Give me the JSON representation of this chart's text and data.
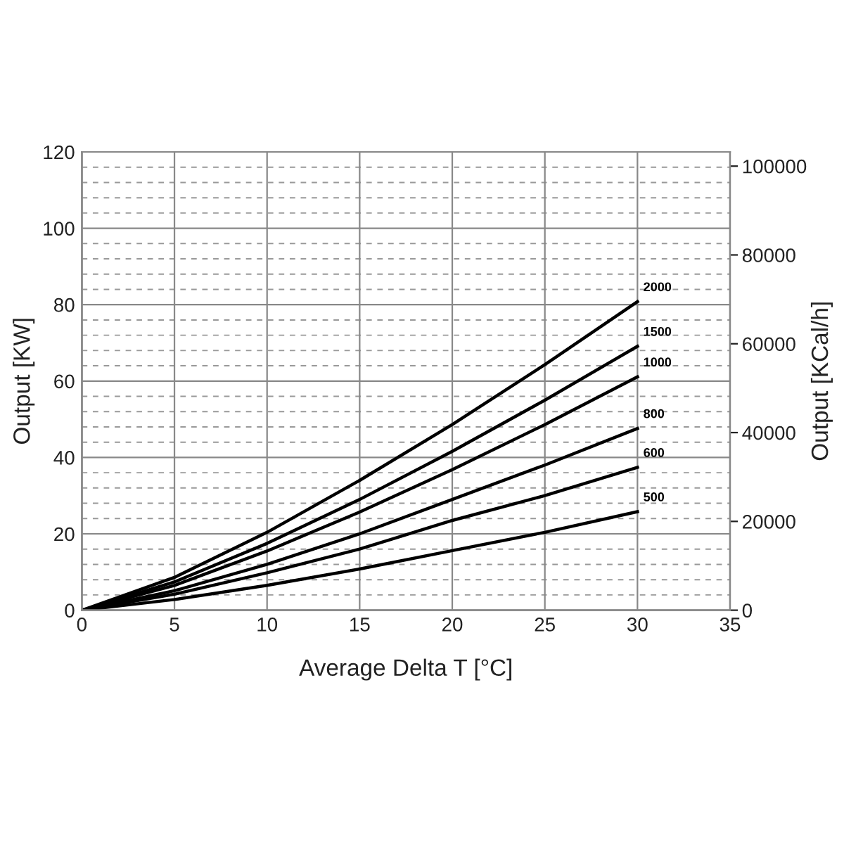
{
  "chart_data": {
    "type": "line",
    "xlabel": "Average Delta T [°C]",
    "ylabel": "Output [KW]",
    "y2label": "Output [KCal/h]",
    "x": [
      0,
      5,
      10,
      15,
      20,
      25,
      30
    ],
    "series": [
      {
        "name": "2000",
        "color": "#000000",
        "values": [
          0,
          8.6,
          20.4,
          34,
          48.6,
          64.3,
          80.8
        ]
      },
      {
        "name": "1500",
        "color": "#000000",
        "values": [
          0,
          7.4,
          17.5,
          29,
          41.6,
          55,
          69.1
        ]
      },
      {
        "name": "1000",
        "color": "#000000",
        "values": [
          0,
          6.5,
          15.5,
          25.7,
          36.8,
          48.6,
          61.1
        ]
      },
      {
        "name": "800",
        "color": "#000000",
        "values": [
          0,
          5.1,
          12,
          20,
          29,
          38,
          47.6
        ]
      },
      {
        "name": "600",
        "color": "#000000",
        "values": [
          0,
          4.2,
          9.8,
          16,
          23.5,
          30,
          37.4
        ]
      },
      {
        "name": "500",
        "color": "#000000",
        "values": [
          0,
          2.8,
          6.5,
          10.8,
          15.6,
          20.4,
          25.8
        ]
      }
    ],
    "xlim": [
      0,
      35
    ],
    "xticks": [
      0,
      5,
      10,
      15,
      20,
      25,
      30,
      35
    ],
    "ylim": [
      0,
      120
    ],
    "yticks": [
      0,
      {
        "value": 4,
        "label": null
      },
      {
        "value": 8,
        "label": null
      },
      {
        "value": 12,
        "label": null
      },
      {
        "value": 16,
        "label": null
      },
      20,
      {
        "value": 24,
        "label": null
      },
      {
        "value": 28,
        "label": null
      },
      {
        "value": 32,
        "label": null
      },
      {
        "value": 36,
        "label": null
      },
      40,
      {
        "value": 44,
        "label": null
      },
      {
        "value": 48,
        "label": null
      },
      {
        "value": 52,
        "label": null
      },
      {
        "value": 56,
        "label": null
      },
      60,
      {
        "value": 64,
        "label": null
      },
      {
        "value": 68,
        "label": null
      },
      {
        "value": 72,
        "label": null
      },
      {
        "value": 76,
        "label": null
      },
      80,
      {
        "value": 84,
        "label": null
      },
      {
        "value": 88,
        "label": null
      },
      {
        "value": 92,
        "label": null
      },
      {
        "value": 96,
        "label": null
      },
      100,
      {
        "value": 104,
        "label": null
      },
      {
        "value": 108,
        "label": null
      },
      {
        "value": 112,
        "label": null
      },
      {
        "value": 116,
        "label": null
      },
      120
    ],
    "y2lim": [
      0,
      103200
    ],
    "y2ticks": [
      0,
      20000,
      40000,
      60000,
      80000,
      100000
    ],
    "grid": true,
    "legend": false,
    "marker": "none",
    "line_style": "solid"
  }
}
